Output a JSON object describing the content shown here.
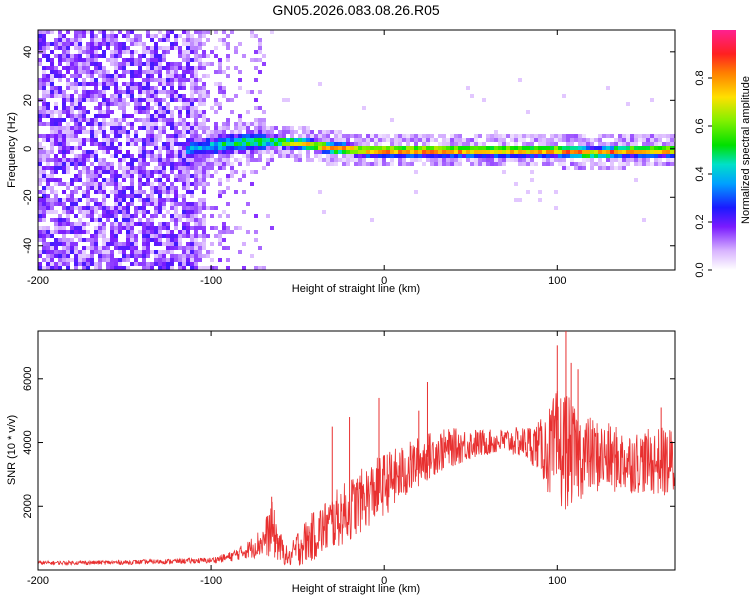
{
  "title": "GN05.2026.083.08.26.R05",
  "chart_data": [
    {
      "type": "heatmap",
      "xlabel": "Height of straight line (km)",
      "ylabel": "Frequency (Hz)",
      "xlim": [
        -200,
        168
      ],
      "ylim": [
        -50,
        49
      ],
      "xticks": [
        -200,
        -100,
        0,
        100
      ],
      "yticks": [
        -40,
        -20,
        0,
        20,
        40
      ],
      "colorbar": {
        "label": "Normalized spectral amplitude",
        "range": [
          0,
          1
        ],
        "ticks": [
          0.0,
          0.2,
          0.4,
          0.6,
          0.8
        ]
      },
      "ridge": {
        "x": [
          -110,
          -90,
          -70,
          -50,
          -30,
          -10,
          0,
          20,
          40,
          60,
          80,
          100,
          120,
          140,
          165
        ],
        "y": [
          1,
          3,
          4,
          3,
          1,
          0,
          0,
          0,
          0,
          0,
          0,
          0,
          -1,
          0,
          0
        ],
        "amplitude": [
          0.4,
          0.5,
          0.6,
          0.8,
          0.9,
          0.9,
          0.95,
          0.95,
          0.95,
          0.9,
          0.9,
          0.9,
          0.85,
          0.9,
          0.9
        ]
      },
      "noise_region_x": [
        -200,
        -65
      ]
    },
    {
      "type": "line",
      "xlabel": "Height of straight line (km)",
      "ylabel": "SNR (10 * v/v)",
      "xlim": [
        -200,
        168
      ],
      "ylim": [
        0,
        7500
      ],
      "xticks": [
        -200,
        -100,
        0,
        100
      ],
      "yticks": [
        2000,
        4000,
        6000
      ],
      "color": "#e83030",
      "envelope": {
        "x": [
          -200,
          -150,
          -100,
          -90,
          -80,
          -70,
          -65,
          -60,
          -55,
          -50,
          -40,
          -30,
          -20,
          -10,
          0,
          10,
          20,
          30,
          40,
          50,
          60,
          70,
          80,
          90,
          95,
          100,
          105,
          110,
          120,
          130,
          140,
          150,
          160,
          168
        ],
        "mean": [
          220,
          240,
          300,
          400,
          600,
          900,
          1300,
          700,
          350,
          700,
          1100,
          1500,
          1900,
          2300,
          2700,
          3000,
          3400,
          3700,
          3850,
          3950,
          4000,
          4050,
          4000,
          3900,
          3700,
          3700,
          3800,
          3600,
          3600,
          3500,
          3400,
          3400,
          3400,
          3300
        ],
        "amp": [
          60,
          70,
          90,
          150,
          250,
          500,
          900,
          500,
          250,
          600,
          800,
          900,
          1000,
          1000,
          1000,
          900,
          800,
          700,
          600,
          500,
          400,
          400,
          500,
          800,
          1400,
          2000,
          1900,
          1500,
          1200,
          1100,
          1000,
          1000,
          1100,
          1200
        ]
      },
      "spikes": [
        [
          -65,
          2300
        ],
        [
          -30,
          4500
        ],
        [
          -20,
          4800
        ],
        [
          -3,
          5400
        ],
        [
          20,
          5000
        ],
        [
          25,
          5900
        ],
        [
          100,
          7050
        ],
        [
          105,
          7500
        ],
        [
          108,
          6500
        ],
        [
          112,
          6300
        ],
        [
          160,
          5100
        ]
      ]
    }
  ]
}
